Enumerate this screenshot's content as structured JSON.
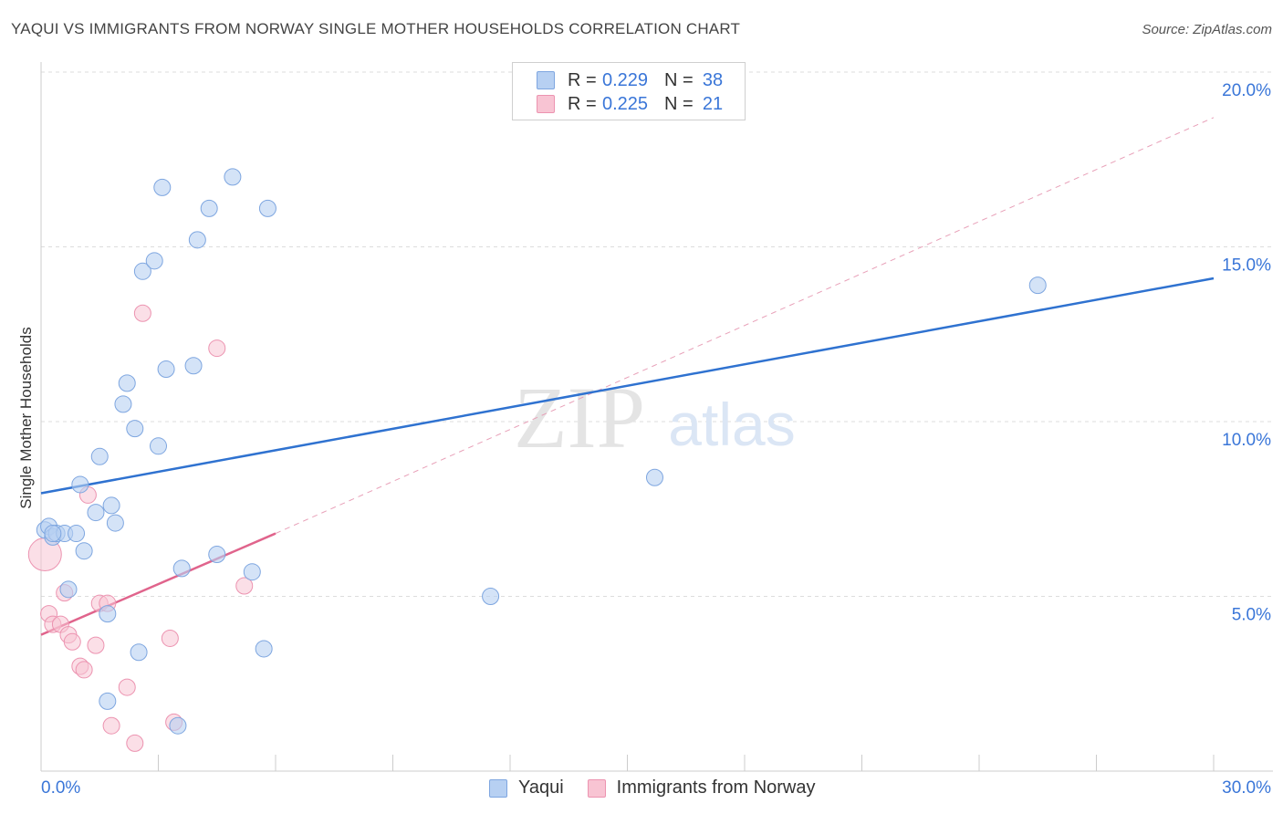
{
  "header": {
    "title": "YAQUI VS IMMIGRANTS FROM NORWAY SINGLE MOTHER HOUSEHOLDS CORRELATION CHART",
    "source": "Source: ZipAtlas.com"
  },
  "watermark": {
    "zip": "ZIP",
    "atlas": "atlas"
  },
  "legend": {
    "rows": [
      {
        "r_label": "R =",
        "r_value": "0.229",
        "n_label": "N =",
        "n_value": "38"
      },
      {
        "r_label": "R =",
        "r_value": "0.225",
        "n_label": "N =",
        "n_value": "21"
      }
    ]
  },
  "bottom_legend": {
    "series1": "Yaqui",
    "series2": "Immigrants from Norway"
  },
  "colors": {
    "yaqui_fill": "#b7d0f2",
    "yaqui_stroke": "#7ea6e0",
    "yaqui_line": "#2f72d0",
    "norway_fill": "#f8c4d3",
    "norway_stroke": "#ec93b0",
    "norway_line": "#e0648c",
    "grid": "#dddddd",
    "tick_label": "#3a76d8"
  },
  "chart_data": {
    "type": "scatter",
    "title": "YAQUI VS IMMIGRANTS FROM NORWAY SINGLE MOTHER HOUSEHOLDS CORRELATION CHART",
    "xlabel": "",
    "ylabel": "Single Mother Households",
    "xlim": [
      0,
      30
    ],
    "ylim": [
      0,
      20
    ],
    "x_tick_labels": [
      {
        "value": 0,
        "label": "0.0%"
      },
      {
        "value": 30,
        "label": "30.0%"
      }
    ],
    "y_tick_labels": [
      {
        "value": 5,
        "label": "5.0%"
      },
      {
        "value": 10,
        "label": "10.0%"
      },
      {
        "value": 15,
        "label": "15.0%"
      },
      {
        "value": 20,
        "label": "20.0%"
      }
    ],
    "x_minor_ticks": [
      0,
      3,
      6,
      9,
      12,
      15,
      18,
      21,
      24,
      27,
      30
    ],
    "grid": true,
    "series": [
      {
        "name": "Yaqui",
        "R": 0.229,
        "N": 38,
        "points": [
          [
            0.1,
            6.9
          ],
          [
            0.2,
            7.0
          ],
          [
            0.3,
            6.7
          ],
          [
            0.4,
            6.8
          ],
          [
            0.6,
            6.8
          ],
          [
            0.7,
            5.2
          ],
          [
            0.9,
            6.8
          ],
          [
            1.0,
            8.2
          ],
          [
            1.1,
            6.3
          ],
          [
            1.5,
            9.0
          ],
          [
            1.4,
            7.4
          ],
          [
            1.7,
            4.5
          ],
          [
            1.8,
            7.6
          ],
          [
            1.9,
            7.1
          ],
          [
            2.1,
            10.5
          ],
          [
            2.2,
            11.1
          ],
          [
            2.4,
            9.8
          ],
          [
            2.6,
            14.3
          ],
          [
            2.9,
            14.6
          ],
          [
            3.0,
            9.3
          ],
          [
            3.1,
            16.7
          ],
          [
            3.2,
            11.5
          ],
          [
            3.6,
            5.8
          ],
          [
            3.9,
            11.6
          ],
          [
            4.0,
            15.2
          ],
          [
            4.3,
            16.1
          ],
          [
            4.5,
            6.2
          ],
          [
            4.9,
            17.0
          ],
          [
            5.4,
            5.7
          ],
          [
            5.8,
            16.1
          ],
          [
            2.5,
            3.4
          ],
          [
            1.7,
            2.0
          ],
          [
            5.7,
            3.5
          ],
          [
            3.5,
            1.3
          ],
          [
            11.5,
            5.0
          ],
          [
            15.7,
            8.4
          ],
          [
            25.5,
            13.9
          ],
          [
            0.3,
            6.8
          ]
        ],
        "trend": {
          "x": [
            0,
            30
          ],
          "y": [
            7.95,
            14.1
          ]
        }
      },
      {
        "name": "Immigrants from Norway",
        "R": 0.225,
        "N": 21,
        "points": [
          [
            0.1,
            6.2
          ],
          [
            0.2,
            4.5
          ],
          [
            0.3,
            4.2
          ],
          [
            0.5,
            4.2
          ],
          [
            0.6,
            5.1
          ],
          [
            0.7,
            3.9
          ],
          [
            0.8,
            3.7
          ],
          [
            1.0,
            3.0
          ],
          [
            1.1,
            2.9
          ],
          [
            1.2,
            7.9
          ],
          [
            1.4,
            3.6
          ],
          [
            1.5,
            4.8
          ],
          [
            1.7,
            4.8
          ],
          [
            1.8,
            1.3
          ],
          [
            2.2,
            2.4
          ],
          [
            2.4,
            0.8
          ],
          [
            2.6,
            13.1
          ],
          [
            3.3,
            3.8
          ],
          [
            3.4,
            1.4
          ],
          [
            4.5,
            12.1
          ],
          [
            5.2,
            5.3
          ]
        ],
        "trend": {
          "x": [
            0,
            6
          ],
          "y": [
            3.9,
            6.8
          ]
        },
        "trend_extended": {
          "x": [
            6,
            30
          ],
          "y": [
            6.8,
            18.7
          ]
        }
      }
    ]
  }
}
